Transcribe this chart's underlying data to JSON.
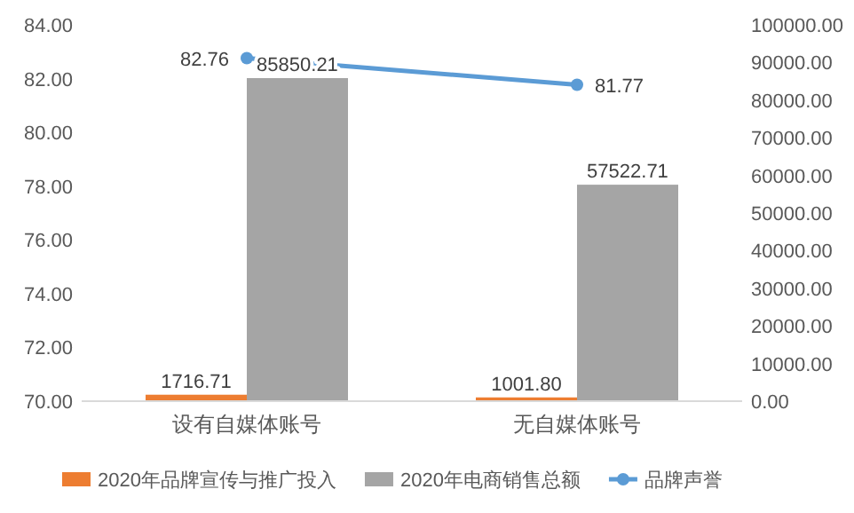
{
  "chart_data": {
    "type": "bar",
    "categories": [
      "设有自媒体账号",
      "无自媒体账号"
    ],
    "series": [
      {
        "name": "2020年品牌宣传与推广投入",
        "color": "#ed7d31",
        "axis": "y2",
        "values": [
          1716.71,
          1001.8
        ],
        "value_labels": [
          "1716.71",
          "1001.80"
        ]
      },
      {
        "name": "2020年电商销售总额",
        "color": "#a5a5a5",
        "axis": "y2",
        "values": [
          85850.21,
          57522.71
        ],
        "value_labels": [
          "85850.21",
          "57522.71"
        ]
      },
      {
        "name": "品牌声誉",
        "type": "line",
        "color": "#5b9bd5",
        "marker": "circle",
        "values": [
          82.76,
          81.77
        ],
        "value_labels": [
          "82.76",
          "81.77"
        ]
      }
    ],
    "ylim": [
      70,
      84
    ],
    "yticks": [
      {
        "value": 70,
        "label": "70.00"
      },
      {
        "value": 72,
        "label": "72.00"
      },
      {
        "value": 74,
        "label": "74.00"
      },
      {
        "value": 76,
        "label": "76.00"
      },
      {
        "value": 78,
        "label": "78.00"
      },
      {
        "value": 80,
        "label": "80.00"
      },
      {
        "value": 82,
        "label": "82.00"
      },
      {
        "value": 84,
        "label": "84.00"
      }
    ],
    "y2lim": [
      0,
      100000
    ],
    "y2ticks": [
      {
        "value": 0,
        "label": "0.00"
      },
      {
        "value": 10000,
        "label": "10000.00"
      },
      {
        "value": 20000,
        "label": "20000.00"
      },
      {
        "value": 30000,
        "label": "30000.00"
      },
      {
        "value": 40000,
        "label": "40000.00"
      },
      {
        "value": 50000,
        "label": "50000.00"
      },
      {
        "value": 60000,
        "label": "60000.00"
      },
      {
        "value": 70000,
        "label": "70000.00"
      },
      {
        "value": 80000,
        "label": "80000.00"
      },
      {
        "value": 90000,
        "label": "90000.00"
      },
      {
        "value": 100000,
        "label": "100000.00"
      }
    ],
    "legend": "bottom",
    "grid": false
  }
}
